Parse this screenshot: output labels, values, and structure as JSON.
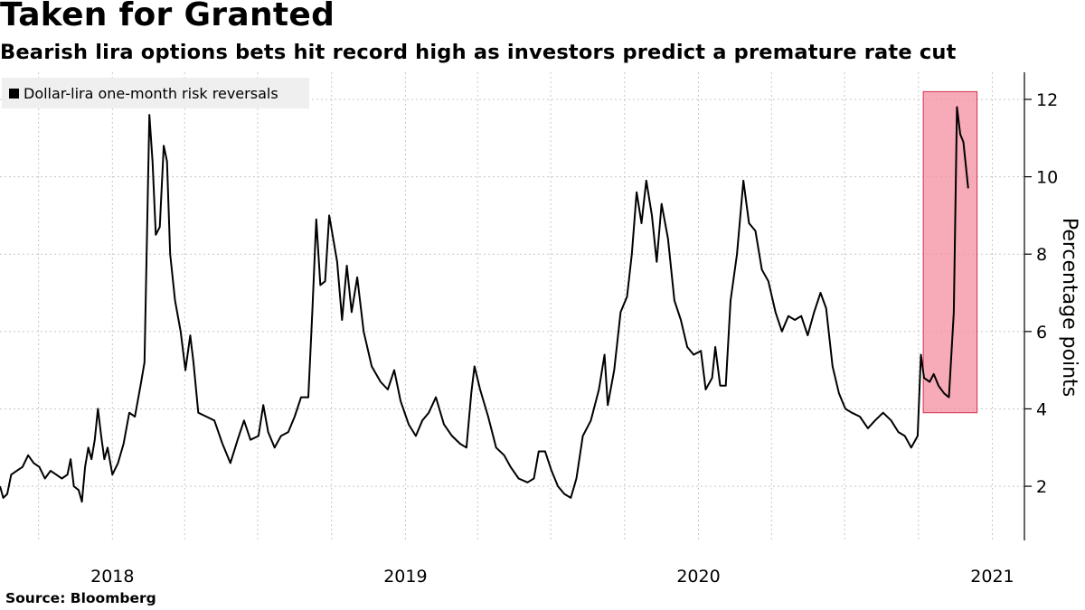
{
  "title": "Taken for Granted",
  "subtitle": "Bearish lira options bets hit record high as investors predict a premature rate cut",
  "source": "Source: Bloomberg",
  "colors": {
    "line": "#000000",
    "highlight_fill": "#f48ea0",
    "highlight_stroke": "#d9304d",
    "grid": "#c8c8c8"
  },
  "chart_data": {
    "type": "line",
    "series": [
      {
        "name": "Dollar-lira one-month risk reversals",
        "points": [
          [
            "2017-08-14",
            2.0
          ],
          [
            "2017-08-18",
            1.7
          ],
          [
            "2017-08-23",
            1.8
          ],
          [
            "2017-08-28",
            2.3
          ],
          [
            "2017-09-04",
            2.4
          ],
          [
            "2017-09-11",
            2.5
          ],
          [
            "2017-09-18",
            2.8
          ],
          [
            "2017-09-25",
            2.6
          ],
          [
            "2017-10-02",
            2.5
          ],
          [
            "2017-10-09",
            2.2
          ],
          [
            "2017-10-16",
            2.4
          ],
          [
            "2017-10-23",
            2.3
          ],
          [
            "2017-10-30",
            2.2
          ],
          [
            "2017-11-06",
            2.3
          ],
          [
            "2017-11-10",
            2.7
          ],
          [
            "2017-11-14",
            2.0
          ],
          [
            "2017-11-20",
            1.9
          ],
          [
            "2017-11-24",
            1.6
          ],
          [
            "2017-11-28",
            2.5
          ],
          [
            "2017-12-02",
            3.0
          ],
          [
            "2017-12-06",
            2.7
          ],
          [
            "2017-12-10",
            3.2
          ],
          [
            "2017-12-14",
            4.0
          ],
          [
            "2017-12-18",
            3.3
          ],
          [
            "2017-12-22",
            2.7
          ],
          [
            "2017-12-26",
            3.0
          ],
          [
            "2018-01-01",
            2.3
          ],
          [
            "2018-01-08",
            2.6
          ],
          [
            "2018-01-15",
            3.1
          ],
          [
            "2018-01-22",
            3.9
          ],
          [
            "2018-01-29",
            3.8
          ],
          [
            "2018-02-05",
            4.6
          ],
          [
            "2018-02-10",
            5.2
          ],
          [
            "2018-02-16",
            11.6
          ],
          [
            "2018-02-20",
            10.4
          ],
          [
            "2018-02-24",
            8.5
          ],
          [
            "2018-03-01",
            8.7
          ],
          [
            "2018-03-06",
            10.8
          ],
          [
            "2018-03-10",
            10.4
          ],
          [
            "2018-03-14",
            8.0
          ],
          [
            "2018-03-20",
            6.8
          ],
          [
            "2018-03-27",
            6.0
          ],
          [
            "2018-04-02",
            5.0
          ],
          [
            "2018-04-08",
            5.9
          ],
          [
            "2018-04-12",
            5.2
          ],
          [
            "2018-04-18",
            3.9
          ],
          [
            "2018-04-28",
            3.8
          ],
          [
            "2018-05-08",
            3.7
          ],
          [
            "2018-05-18",
            3.1
          ],
          [
            "2018-05-28",
            2.6
          ],
          [
            "2018-06-06",
            3.2
          ],
          [
            "2018-06-14",
            3.7
          ],
          [
            "2018-06-22",
            3.2
          ],
          [
            "2018-07-02",
            3.3
          ],
          [
            "2018-07-08",
            4.1
          ],
          [
            "2018-07-14",
            3.4
          ],
          [
            "2018-07-22",
            3.0
          ],
          [
            "2018-07-30",
            3.3
          ],
          [
            "2018-08-08",
            3.4
          ],
          [
            "2018-08-16",
            3.8
          ],
          [
            "2018-08-24",
            4.3
          ],
          [
            "2018-09-02",
            4.3
          ],
          [
            "2018-09-07",
            6.5
          ],
          [
            "2018-09-12",
            8.9
          ],
          [
            "2018-09-17",
            7.2
          ],
          [
            "2018-09-23",
            7.3
          ],
          [
            "2018-09-28",
            9.0
          ],
          [
            "2018-10-03",
            8.4
          ],
          [
            "2018-10-08",
            7.8
          ],
          [
            "2018-10-14",
            6.3
          ],
          [
            "2018-10-20",
            7.7
          ],
          [
            "2018-10-26",
            6.5
          ],
          [
            "2018-11-02",
            7.4
          ],
          [
            "2018-11-10",
            6.0
          ],
          [
            "2018-11-20",
            5.1
          ],
          [
            "2018-12-01",
            4.7
          ],
          [
            "2018-12-10",
            4.5
          ],
          [
            "2018-12-18",
            5.0
          ],
          [
            "2018-12-26",
            4.2
          ],
          [
            "2019-01-05",
            3.6
          ],
          [
            "2019-01-14",
            3.3
          ],
          [
            "2019-01-22",
            3.7
          ],
          [
            "2019-01-30",
            3.9
          ],
          [
            "2019-02-08",
            4.3
          ],
          [
            "2019-02-18",
            3.6
          ],
          [
            "2019-02-28",
            3.3
          ],
          [
            "2019-03-10",
            3.1
          ],
          [
            "2019-03-18",
            3.0
          ],
          [
            "2019-03-24",
            4.4
          ],
          [
            "2019-03-28",
            5.1
          ],
          [
            "2019-04-04",
            4.5
          ],
          [
            "2019-04-14",
            3.8
          ],
          [
            "2019-04-24",
            3.0
          ],
          [
            "2019-05-04",
            2.8
          ],
          [
            "2019-05-12",
            2.5
          ],
          [
            "2019-05-22",
            2.2
          ],
          [
            "2019-06-02",
            2.1
          ],
          [
            "2019-06-10",
            2.2
          ],
          [
            "2019-06-16",
            2.9
          ],
          [
            "2019-06-24",
            2.9
          ],
          [
            "2019-07-02",
            2.4
          ],
          [
            "2019-07-10",
            2.0
          ],
          [
            "2019-07-18",
            1.8
          ],
          [
            "2019-07-26",
            1.7
          ],
          [
            "2019-08-02",
            2.2
          ],
          [
            "2019-08-10",
            3.3
          ],
          [
            "2019-08-20",
            3.7
          ],
          [
            "2019-08-30",
            4.5
          ],
          [
            "2019-09-06",
            5.4
          ],
          [
            "2019-09-10",
            4.1
          ],
          [
            "2019-09-18",
            5.0
          ],
          [
            "2019-09-26",
            6.5
          ],
          [
            "2019-10-04",
            6.9
          ],
          [
            "2019-10-10",
            8.0
          ],
          [
            "2019-10-16",
            9.6
          ],
          [
            "2019-10-22",
            8.8
          ],
          [
            "2019-10-28",
            9.9
          ],
          [
            "2019-11-04",
            9.0
          ],
          [
            "2019-11-10",
            7.8
          ],
          [
            "2019-11-16",
            9.3
          ],
          [
            "2019-11-24",
            8.4
          ],
          [
            "2019-12-02",
            6.8
          ],
          [
            "2019-12-10",
            6.3
          ],
          [
            "2019-12-18",
            5.6
          ],
          [
            "2019-12-26",
            5.4
          ],
          [
            "2020-01-04",
            5.5
          ],
          [
            "2020-01-10",
            4.5
          ],
          [
            "2020-01-18",
            4.8
          ],
          [
            "2020-01-22",
            5.6
          ],
          [
            "2020-01-28",
            4.6
          ],
          [
            "2020-02-04",
            4.6
          ],
          [
            "2020-02-10",
            6.8
          ],
          [
            "2020-02-18",
            8.0
          ],
          [
            "2020-02-26",
            9.9
          ],
          [
            "2020-03-04",
            8.8
          ],
          [
            "2020-03-12",
            8.6
          ],
          [
            "2020-03-20",
            7.6
          ],
          [
            "2020-03-28",
            7.3
          ],
          [
            "2020-04-06",
            6.5
          ],
          [
            "2020-04-14",
            6.0
          ],
          [
            "2020-04-22",
            6.4
          ],
          [
            "2020-04-30",
            6.3
          ],
          [
            "2020-05-08",
            6.4
          ],
          [
            "2020-05-16",
            5.9
          ],
          [
            "2020-05-24",
            6.5
          ],
          [
            "2020-06-01",
            7.0
          ],
          [
            "2020-06-08",
            6.6
          ],
          [
            "2020-06-16",
            5.1
          ],
          [
            "2020-06-24",
            4.4
          ],
          [
            "2020-07-02",
            4.0
          ],
          [
            "2020-07-10",
            3.9
          ],
          [
            "2020-07-20",
            3.8
          ],
          [
            "2020-07-30",
            3.5
          ],
          [
            "2020-08-08",
            3.7
          ],
          [
            "2020-08-18",
            3.9
          ],
          [
            "2020-08-28",
            3.7
          ],
          [
            "2020-09-06",
            3.4
          ],
          [
            "2020-09-14",
            3.3
          ],
          [
            "2020-09-22",
            3.0
          ],
          [
            "2020-09-30",
            3.3
          ],
          [
            "2020-10-04",
            5.4
          ],
          [
            "2020-10-08",
            4.8
          ],
          [
            "2020-10-15",
            4.7
          ],
          [
            "2020-10-20",
            4.9
          ],
          [
            "2020-10-26",
            4.6
          ],
          [
            "2020-11-02",
            4.4
          ],
          [
            "2020-11-08",
            4.3
          ],
          [
            "2020-11-14",
            6.5
          ],
          [
            "2020-11-18",
            11.8
          ],
          [
            "2020-11-22",
            11.1
          ],
          [
            "2020-11-26",
            10.9
          ],
          [
            "2020-12-02",
            9.7
          ]
        ]
      }
    ],
    "x_ticks": [
      {
        "label": "2018",
        "date": "2018-01-01"
      },
      {
        "label": "2019",
        "date": "2019-01-01"
      },
      {
        "label": "2020",
        "date": "2020-01-01"
      },
      {
        "label": "2021",
        "date": "2021-01-01"
      }
    ],
    "y_ticks": [
      2,
      4,
      6,
      8,
      10,
      12
    ],
    "ylabel": "Percentage points",
    "xlim": [
      "2017-08-14",
      "2021-02-10"
    ],
    "ylim": [
      0.6,
      12.7
    ],
    "y_axis_side": "right",
    "grid": true,
    "highlight": {
      "x_range": [
        "2020-10-07",
        "2020-12-13"
      ],
      "y_range": [
        3.9,
        12.2
      ]
    }
  }
}
